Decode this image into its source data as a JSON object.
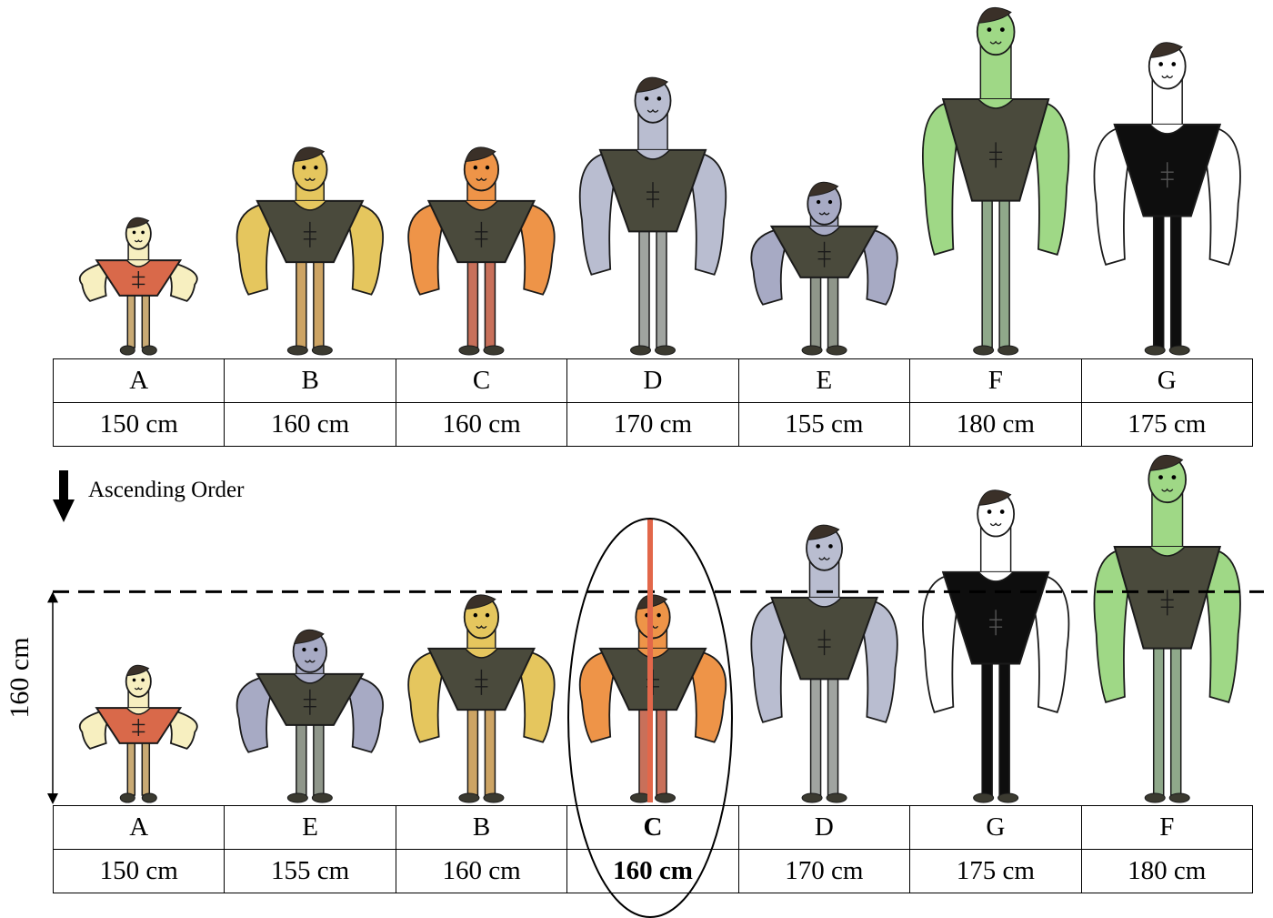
{
  "top_row": [
    {
      "label": "A",
      "height": "150 cm",
      "cm": 150,
      "skin": "#f7efc0",
      "shirt": "#d9694a",
      "pants": "#c9aa74"
    },
    {
      "label": "B",
      "height": "160 cm",
      "cm": 160,
      "skin": "#e5c65e",
      "shirt": "#4a4a3c",
      "pants": "#cda464"
    },
    {
      "label": "C",
      "height": "160 cm",
      "cm": 160,
      "skin": "#ee9448",
      "shirt": "#4a4a3c",
      "pants": "#c8705a"
    },
    {
      "label": "D",
      "height": "170 cm",
      "cm": 170,
      "skin": "#b9bdd0",
      "shirt": "#4a4a3c",
      "pants": "#a0a4a0"
    },
    {
      "label": "E",
      "height": "155 cm",
      "cm": 155,
      "skin": "#a7aac4",
      "shirt": "#4a4a3c",
      "pants": "#8f968a"
    },
    {
      "label": "F",
      "height": "180 cm",
      "cm": 180,
      "skin": "#9fd886",
      "shirt": "#4a4a3c",
      "pants": "#8fa88a"
    },
    {
      "label": "G",
      "height": "175 cm",
      "cm": 175,
      "skin": "#ffffff",
      "shirt": "#0e0e0e",
      "pants": "#0e0e0e"
    }
  ],
  "bottom_row": [
    {
      "label": "A",
      "height": "150 cm",
      "cm": 150,
      "skin": "#f7efc0",
      "shirt": "#d9694a",
      "pants": "#c9aa74"
    },
    {
      "label": "E",
      "height": "155 cm",
      "cm": 155,
      "skin": "#a7aac4",
      "shirt": "#4a4a3c",
      "pants": "#8f968a"
    },
    {
      "label": "B",
      "height": "160 cm",
      "cm": 160,
      "skin": "#e5c65e",
      "shirt": "#4a4a3c",
      "pants": "#cda464"
    },
    {
      "label": "C",
      "height": "160 cm",
      "cm": 160,
      "skin": "#ee9448",
      "shirt": "#4a4a3c",
      "pants": "#c8705a",
      "highlight": true
    },
    {
      "label": "D",
      "height": "170 cm",
      "cm": 170,
      "skin": "#b9bdd0",
      "shirt": "#4a4a3c",
      "pants": "#a0a4a0"
    },
    {
      "label": "G",
      "height": "175 cm",
      "cm": 175,
      "skin": "#ffffff",
      "shirt": "#0e0e0e",
      "pants": "#0e0e0e"
    },
    {
      "label": "F",
      "height": "180 cm",
      "cm": 180,
      "skin": "#9fd886",
      "shirt": "#4a4a3c",
      "pants": "#8fa88a"
    }
  ],
  "sort_label": "Ascending Order",
  "median_label": "160 cm",
  "colors": {
    "median_line": "#e2674a",
    "outline": "#1a1a1a",
    "hair": "#3a3028",
    "shoes": "#3b3a30"
  }
}
